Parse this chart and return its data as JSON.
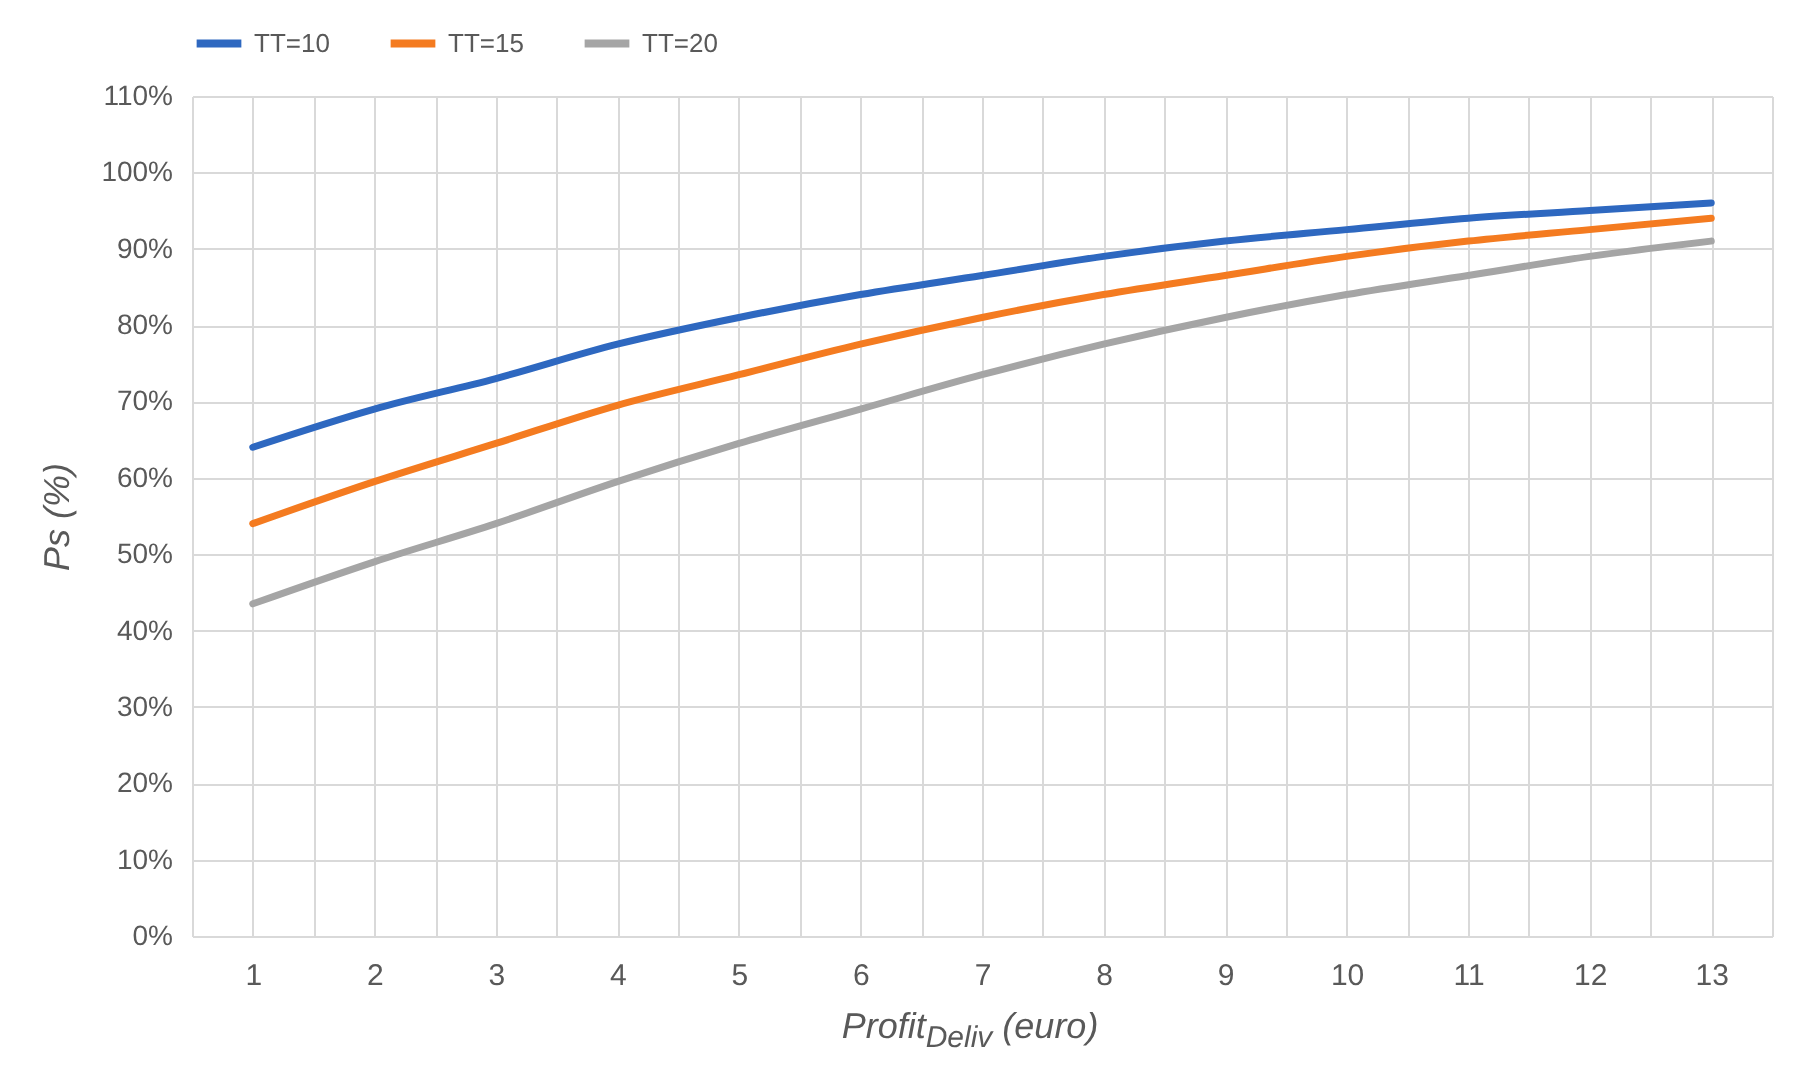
{
  "chart_data": {
    "type": "line",
    "xlabel": "Profit$_{Deliv}$ (euro)",
    "ylabel": "Ps (%)",
    "x": [
      1,
      2,
      3,
      4,
      5,
      6,
      7,
      8,
      9,
      10,
      11,
      12,
      13
    ],
    "series": [
      {
        "name": "TT=10",
        "color": "#2e68c0",
        "values": [
          64,
          69,
          73,
          77.5,
          81,
          84,
          86.5,
          89,
          91,
          92.5,
          94,
          95,
          96
        ]
      },
      {
        "name": "TT=15",
        "color": "#f47b20",
        "values": [
          54,
          59.5,
          64.5,
          69.5,
          73.5,
          77.5,
          81,
          84,
          86.5,
          89,
          91,
          92.5,
          94
        ]
      },
      {
        "name": "TT=20",
        "color": "#a5a5a5",
        "values": [
          43.5,
          49,
          54,
          59.5,
          64.5,
          69,
          73.5,
          77.5,
          81,
          84,
          86.5,
          89,
          91
        ]
      }
    ],
    "xlim": [
      0.5,
      13.5
    ],
    "xticks": [
      {
        "value": 0.5,
        "label": null
      },
      1,
      {
        "value": 1.5,
        "label": null
      },
      2,
      {
        "value": 2.5,
        "label": null
      },
      3,
      {
        "value": 3.5,
        "label": null
      },
      4,
      {
        "value": 4.5,
        "label": null
      },
      5,
      {
        "value": 5.5,
        "label": null
      },
      6,
      {
        "value": 6.5,
        "label": null
      },
      7,
      {
        "value": 7.5,
        "label": null
      },
      8,
      {
        "value": 8.5,
        "label": null
      },
      9,
      {
        "value": 9.5,
        "label": null
      },
      10,
      {
        "value": 10.5,
        "label": null
      },
      11,
      {
        "value": 11.5,
        "label": null
      },
      12,
      {
        "value": 12.5,
        "label": null
      },
      13,
      {
        "value": 13.5,
        "label": null
      }
    ],
    "ylim": [
      0,
      110
    ],
    "yticks": [
      {
        "value": 0,
        "label": "0%"
      },
      {
        "value": 10,
        "label": "10%"
      },
      {
        "value": 20,
        "label": "20%"
      },
      {
        "value": 30,
        "label": "30%"
      },
      {
        "value": 40,
        "label": "40%"
      },
      {
        "value": 50,
        "label": "50%"
      },
      {
        "value": 60,
        "label": "60%"
      },
      {
        "value": 70,
        "label": "70%"
      },
      {
        "value": 80,
        "label": "80%"
      },
      {
        "value": 90,
        "label": "90%"
      },
      {
        "value": 100,
        "label": "100%"
      },
      {
        "value": 110,
        "label": "110%"
      }
    ],
    "grid": true,
    "legend": "top"
  }
}
